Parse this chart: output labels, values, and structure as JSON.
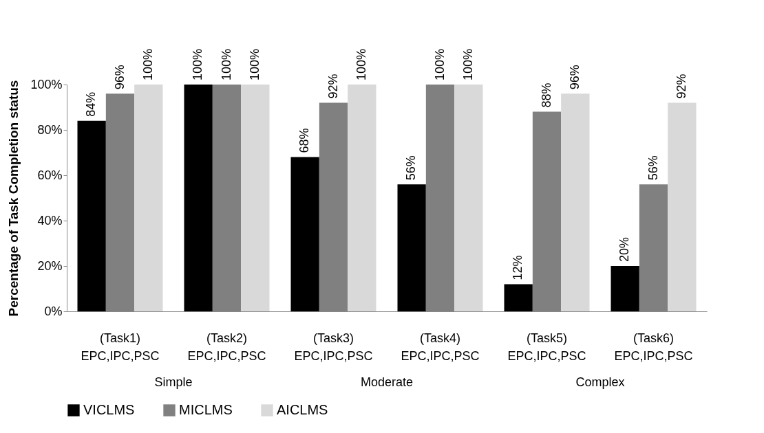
{
  "chart_data": {
    "type": "bar",
    "ylabel": "Percentage of Task Completion status",
    "categories": [
      "(Task1)\nEPC,IPC,PSC",
      "(Task2)\nEPC,IPC,PSC",
      "(Task3)\nEPC,IPC,PSC",
      "(Task4)\nEPC,IPC,PSC",
      "(Task5)\nEPC,IPC,PSC",
      "(Task6)\nEPC,IPC,PSC"
    ],
    "series": [
      {
        "name": "VICLMS",
        "color": "#000000",
        "values": [
          84,
          100,
          68,
          56,
          12,
          20
        ],
        "value_labels": [
          "84%",
          "100%",
          "68%",
          "56%",
          "12%",
          "20%"
        ]
      },
      {
        "name": "MICLMS",
        "color": "#808080",
        "values": [
          96,
          100,
          92,
          100,
          88,
          56
        ],
        "value_labels": [
          "96%",
          "100%",
          "92%",
          "100%",
          "88%",
          "56%"
        ]
      },
      {
        "name": "AICLMS",
        "color": "#d9d9d9",
        "values": [
          100,
          100,
          100,
          100,
          96,
          92
        ],
        "value_labels": [
          "100%",
          "100%",
          "100%",
          "100%",
          "96%",
          "92%"
        ]
      }
    ],
    "ylim": [
      0,
      100
    ],
    "yticks": [
      {
        "value": 0,
        "label": "0%"
      },
      {
        "value": 20,
        "label": "20%"
      },
      {
        "value": 40,
        "label": "40%"
      },
      {
        "value": 60,
        "label": "60%"
      },
      {
        "value": 80,
        "label": "80%"
      },
      {
        "value": 100,
        "label": "100%"
      }
    ],
    "annotations": [
      "Simple",
      "Moderate",
      "Complex"
    ],
    "grid": false,
    "legend": "bottom"
  }
}
